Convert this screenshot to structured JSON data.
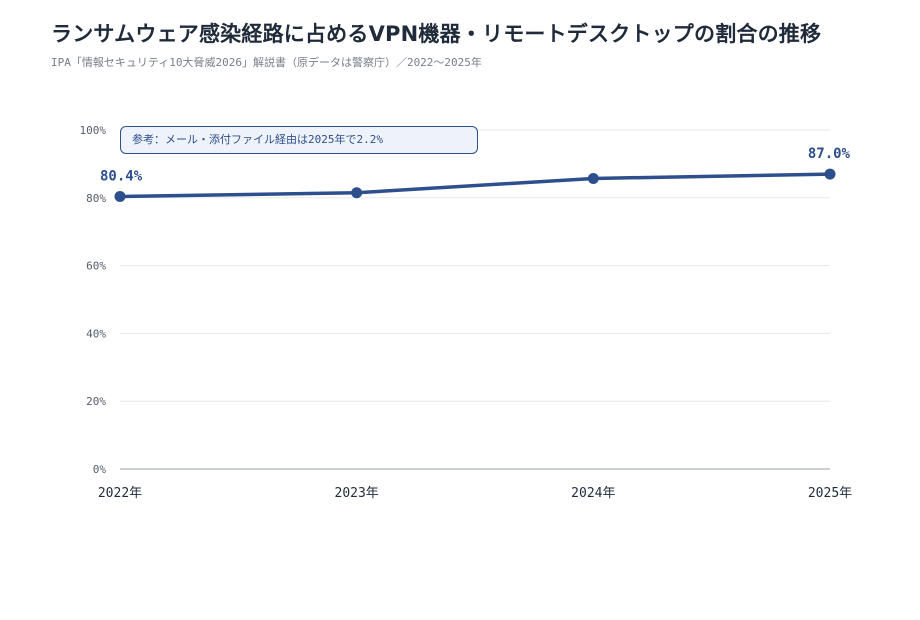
{
  "title": "ランサムウェア感染経路に占めるVPN機器・リモートデスクトップの割合の推移",
  "subtitle": "IPA「情報セキュリティ10大脅威2026」解説書（原データは警察庁）／2022〜2025年",
  "annotation": "参考：メール・添付ファイル経由は2025年で2.2%",
  "colors": {
    "line": "#2e4f8e",
    "grid": "#e6e8ec",
    "axis": "#9aa0a8"
  },
  "chart_data": {
    "type": "line",
    "title": "ランサムウェア感染経路に占めるVPN機器・リモートデスクトップの割合の推移",
    "categories": [
      "2022年",
      "2023年",
      "2024年",
      "2025年"
    ],
    "values": [
      80.4,
      81.5,
      85.7,
      87.0
    ],
    "data_labels": [
      {
        "index": 0,
        "text": "80.4%"
      },
      {
        "index": 3,
        "text": "87.0%"
      }
    ],
    "ylim": [
      0,
      100
    ],
    "yticks": [
      0,
      20,
      40,
      60,
      80,
      100
    ],
    "ytick_labels": [
      "0%",
      "20%",
      "40%",
      "60%",
      "80%",
      "100%"
    ],
    "grid": true,
    "legend": "none"
  }
}
